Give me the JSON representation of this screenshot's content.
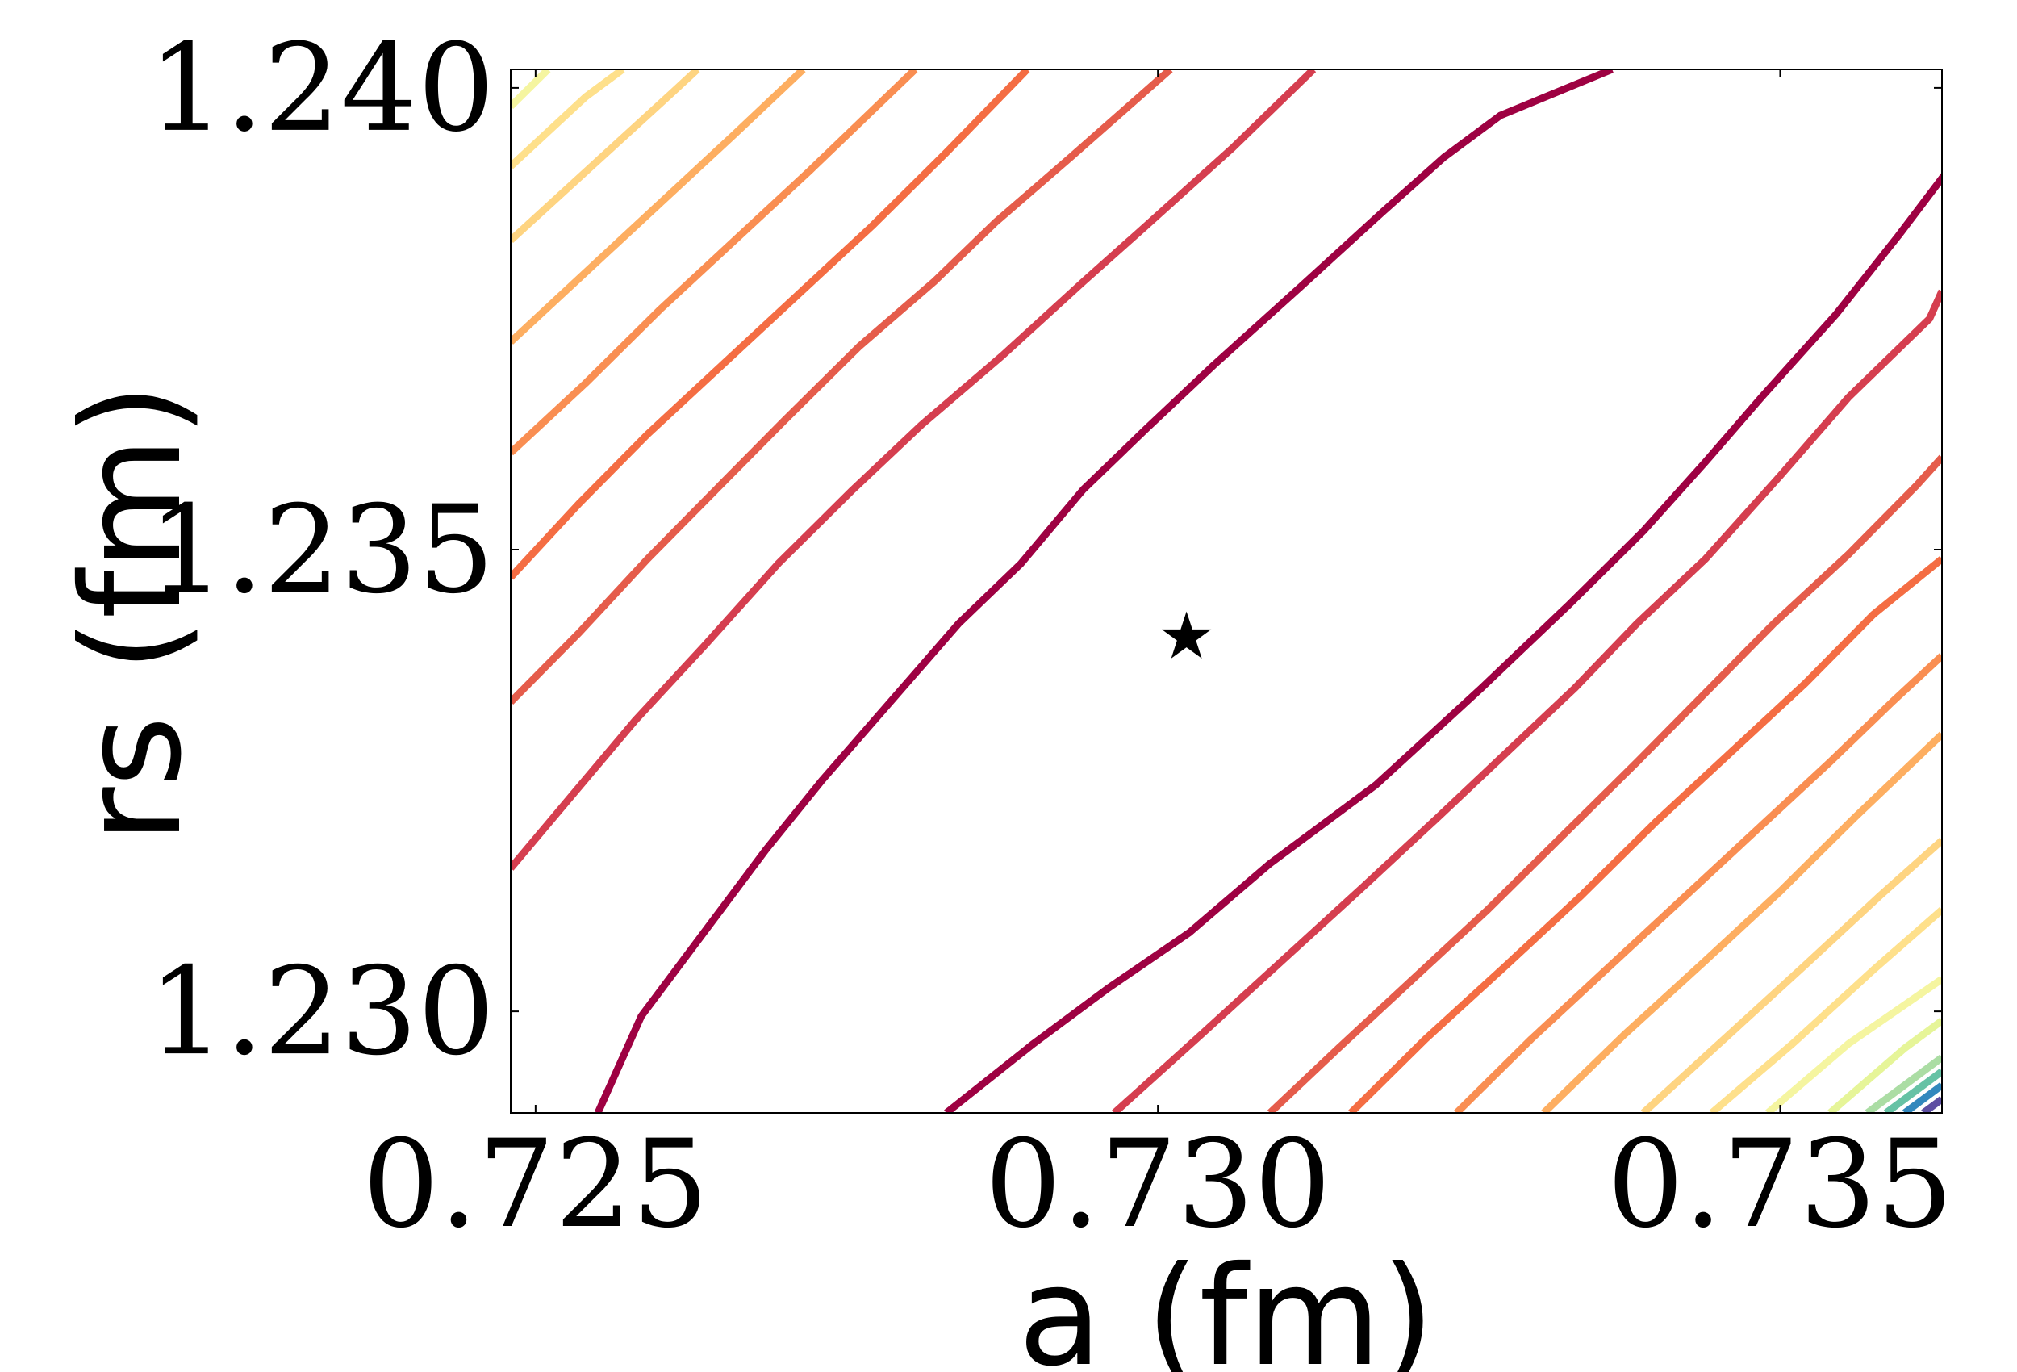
{
  "chart_data": {
    "type": "contour",
    "xlabel": "a (fm)",
    "ylabel": "rs (fm)",
    "xlim": [
      0.7248,
      0.7363
    ],
    "ylim": [
      1.2289,
      1.2402
    ],
    "x_ticks": [
      {
        "value": 0.725,
        "label": "0.725"
      },
      {
        "value": 0.73,
        "label": "0.730"
      },
      {
        "value": 0.735,
        "label": "0.735"
      }
    ],
    "y_ticks": [
      {
        "value": 1.23,
        "label": "1.230"
      },
      {
        "value": 1.235,
        "label": "1.235"
      },
      {
        "value": 1.24,
        "label": "1.240"
      }
    ],
    "minimum_marker": {
      "symbol": "★",
      "x": 0.73023,
      "y": 1.23405
    },
    "grid": false,
    "legend": "none",
    "contours": [
      {
        "color": "#9e0142",
        "points": [
          [
            0.7255,
            1.2289
          ],
          [
            0.72585,
            1.22995
          ],
          [
            0.72635,
            1.23085
          ],
          [
            0.72685,
            1.23175
          ],
          [
            0.7273,
            1.2325
          ],
          [
            0.72785,
            1.23335
          ],
          [
            0.7284,
            1.2342
          ],
          [
            0.7289,
            1.23485
          ],
          [
            0.7294,
            1.23565
          ],
          [
            0.7299,
            1.2363
          ],
          [
            0.73045,
            1.237
          ],
          [
            0.73115,
            1.23785
          ],
          [
            0.7318,
            1.23865
          ],
          [
            0.7323,
            1.23925
          ],
          [
            0.73275,
            1.2397
          ],
          [
            0.73365,
            1.2402
          ]
        ]
      },
      {
        "color": "#9e0142",
        "points": [
          [
            0.7283,
            1.2289
          ],
          [
            0.729,
            1.22965
          ],
          [
            0.7296,
            1.23025
          ],
          [
            0.73025,
            1.23085
          ],
          [
            0.7309,
            1.2316
          ],
          [
            0.73175,
            1.23245
          ],
          [
            0.7326,
            1.2335
          ],
          [
            0.7333,
            1.2344
          ],
          [
            0.7339,
            1.2352
          ],
          [
            0.7344,
            1.23595
          ],
          [
            0.73485,
            1.23665
          ],
          [
            0.73545,
            1.23755
          ],
          [
            0.73595,
            1.2384
          ],
          [
            0.7364,
            1.2392
          ],
          [
            0.73665,
            1.23985
          ],
          [
            0.73685,
            1.2402
          ]
        ]
      },
      {
        "color": "#d53e4f",
        "points": [
          [
            0.7248,
            1.23155
          ],
          [
            0.7253,
            1.23235
          ],
          [
            0.7258,
            1.23315
          ],
          [
            0.72635,
            1.23395
          ],
          [
            0.72695,
            1.23485
          ],
          [
            0.72755,
            1.23565
          ],
          [
            0.7281,
            1.23635
          ],
          [
            0.72875,
            1.2371
          ],
          [
            0.7294,
            1.2379
          ],
          [
            0.7299,
            1.2385
          ],
          [
            0.7306,
            1.23935
          ],
          [
            0.73125,
            1.2402
          ]
        ]
      },
      {
        "color": "#d53e4f",
        "points": [
          [
            0.72965,
            1.2289
          ],
          [
            0.73035,
            1.22975
          ],
          [
            0.731,
            1.23055
          ],
          [
            0.73165,
            1.23135
          ],
          [
            0.73225,
            1.2321
          ],
          [
            0.7328,
            1.2328
          ],
          [
            0.73335,
            1.2335
          ],
          [
            0.73385,
            1.2342
          ],
          [
            0.7344,
            1.2349
          ],
          [
            0.735,
            1.2358
          ],
          [
            0.73555,
            1.23665
          ],
          [
            0.7362,
            1.2375
          ],
          [
            0.7363,
            1.2378
          ]
        ]
      },
      {
        "color": "#e55c4b",
        "points": [
          [
            0.7248,
            1.23335
          ],
          [
            0.72535,
            1.2341
          ],
          [
            0.7259,
            1.2349
          ],
          [
            0.72645,
            1.23565
          ],
          [
            0.727,
            1.2364
          ],
          [
            0.7276,
            1.2372
          ],
          [
            0.7282,
            1.2379
          ],
          [
            0.7287,
            1.23855
          ],
          [
            0.7293,
            1.23925
          ],
          [
            0.7301,
            1.2402
          ]
        ]
      },
      {
        "color": "#e55c4b",
        "points": [
          [
            0.7309,
            1.2289
          ],
          [
            0.73145,
            1.2296
          ],
          [
            0.73205,
            1.23035
          ],
          [
            0.73265,
            1.2311
          ],
          [
            0.73325,
            1.2319
          ],
          [
            0.73385,
            1.2327
          ],
          [
            0.7344,
            1.23345
          ],
          [
            0.73495,
            1.2342
          ],
          [
            0.73555,
            1.23495
          ],
          [
            0.7361,
            1.2357
          ],
          [
            0.7363,
            1.236
          ]
        ]
      },
      {
        "color": "#f46d43",
        "points": [
          [
            0.7248,
            1.2347
          ],
          [
            0.72535,
            1.2355
          ],
          [
            0.7259,
            1.23625
          ],
          [
            0.7265,
            1.237
          ],
          [
            0.7271,
            1.23775
          ],
          [
            0.7277,
            1.2385
          ],
          [
            0.7283,
            1.2393
          ],
          [
            0.72895,
            1.2402
          ]
        ]
      },
      {
        "color": "#f46d43",
        "points": [
          [
            0.73155,
            1.2289
          ],
          [
            0.73215,
            1.2297
          ],
          [
            0.7328,
            1.2305
          ],
          [
            0.7334,
            1.23125
          ],
          [
            0.734,
            1.23205
          ],
          [
            0.7346,
            1.2328
          ],
          [
            0.7352,
            1.23355
          ],
          [
            0.73575,
            1.2343
          ],
          [
            0.7363,
            1.2349
          ]
        ]
      },
      {
        "color": "#f98e52",
        "points": [
          [
            0.7248,
            1.23605
          ],
          [
            0.7254,
            1.2368
          ],
          [
            0.726,
            1.2376
          ],
          [
            0.7266,
            1.23835
          ],
          [
            0.7272,
            1.2391
          ],
          [
            0.72805,
            1.2402
          ]
        ]
      },
      {
        "color": "#f98e52",
        "points": [
          [
            0.7324,
            1.2289
          ],
          [
            0.733,
            1.2297
          ],
          [
            0.7336,
            1.23045
          ],
          [
            0.7342,
            1.2312
          ],
          [
            0.7348,
            1.23195
          ],
          [
            0.7354,
            1.2327
          ],
          [
            0.7359,
            1.23335
          ],
          [
            0.7363,
            1.23385
          ]
        ]
      },
      {
        "color": "#fdae61",
        "points": [
          [
            0.7248,
            1.23725
          ],
          [
            0.7254,
            1.238
          ],
          [
            0.726,
            1.23875
          ],
          [
            0.7266,
            1.2395
          ],
          [
            0.72715,
            1.2402
          ]
        ]
      },
      {
        "color": "#fdae61",
        "points": [
          [
            0.7331,
            1.2289
          ],
          [
            0.73375,
            1.22975
          ],
          [
            0.7344,
            1.23055
          ],
          [
            0.735,
            1.2313
          ],
          [
            0.7356,
            1.2321
          ],
          [
            0.7363,
            1.233
          ]
        ]
      },
      {
        "color": "#fed481",
        "points": [
          [
            0.7248,
            1.23835
          ],
          [
            0.72545,
            1.23915
          ],
          [
            0.7261,
            1.23995
          ],
          [
            0.7263,
            1.2402
          ]
        ]
      },
      {
        "color": "#fed481",
        "points": [
          [
            0.7339,
            1.2289
          ],
          [
            0.73455,
            1.2297
          ],
          [
            0.7352,
            1.2305
          ],
          [
            0.7358,
            1.23125
          ],
          [
            0.7363,
            1.23185
          ]
        ]
      },
      {
        "color": "#fee08b",
        "points": [
          [
            0.7248,
            1.23915
          ],
          [
            0.7254,
            1.2399
          ],
          [
            0.7257,
            1.2402
          ]
        ]
      },
      {
        "color": "#fee08b",
        "points": [
          [
            0.73445,
            1.2289
          ],
          [
            0.7351,
            1.22965
          ],
          [
            0.73575,
            1.23045
          ],
          [
            0.7363,
            1.2311
          ]
        ]
      },
      {
        "color": "#f5f5a0",
        "points": [
          [
            0.7248,
            1.2398
          ],
          [
            0.7251,
            1.2402
          ]
        ]
      },
      {
        "color": "#f5f5a0",
        "points": [
          [
            0.7349,
            1.2289
          ],
          [
            0.73555,
            1.22965
          ],
          [
            0.7363,
            1.23035
          ]
        ]
      },
      {
        "color": "#e6f598",
        "points": [
          [
            0.7354,
            1.2289
          ],
          [
            0.736,
            1.2296
          ],
          [
            0.7363,
            1.2299
          ]
        ]
      },
      {
        "color": "#abdda4",
        "points": [
          [
            0.7357,
            1.2289
          ],
          [
            0.7363,
            1.2295
          ]
        ]
      },
      {
        "color": "#66c2a5",
        "points": [
          [
            0.73585,
            1.2289
          ],
          [
            0.7363,
            1.22935
          ]
        ]
      },
      {
        "color": "#3288bd",
        "points": [
          [
            0.736,
            1.2289
          ],
          [
            0.7363,
            1.2292
          ]
        ]
      },
      {
        "color": "#5e4fa2",
        "points": [
          [
            0.73615,
            1.2289
          ],
          [
            0.7363,
            1.22905
          ]
        ]
      }
    ]
  }
}
